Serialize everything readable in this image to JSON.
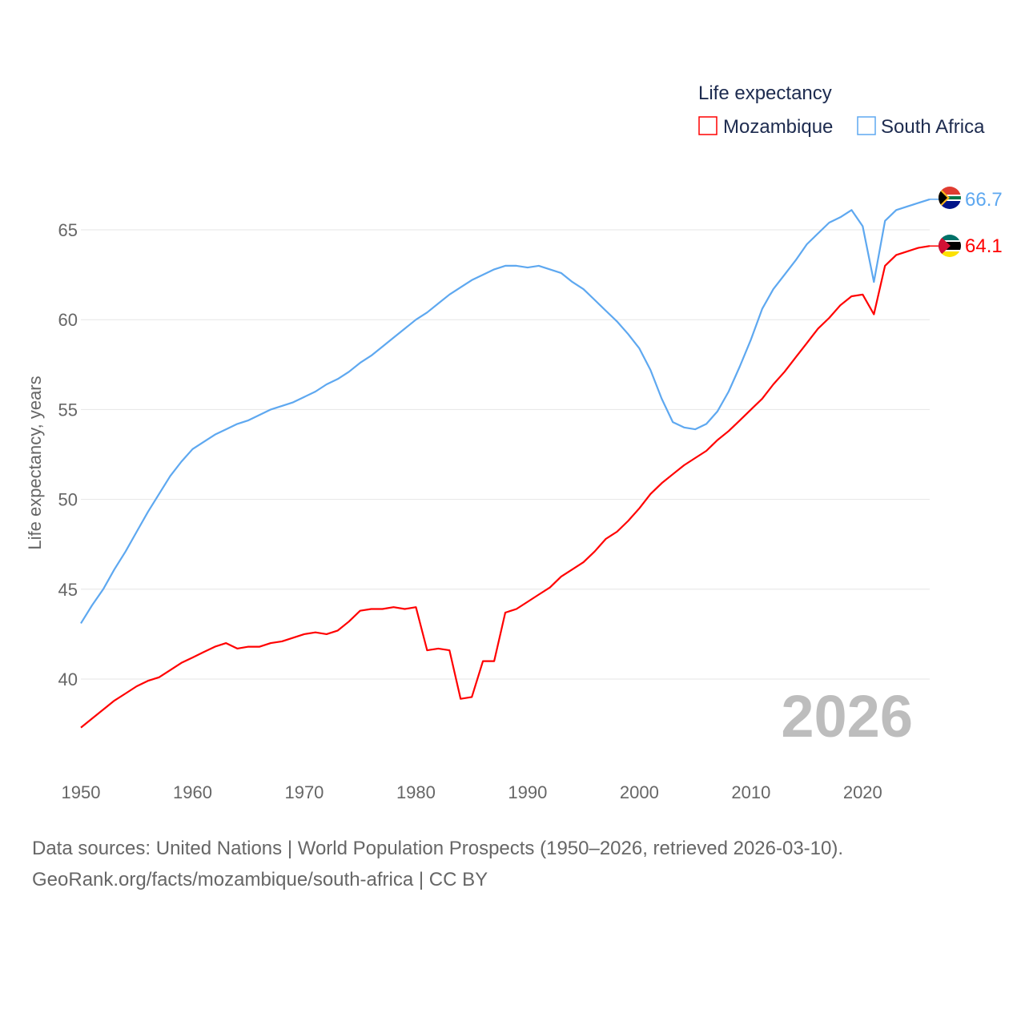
{
  "chart_data": {
    "type": "line",
    "legend_title": "Life expectancy",
    "legend_position": "top-right",
    "ylabel": "Life expectancy, years",
    "xlabel": "",
    "ylim": [
      35,
      68
    ],
    "xlim": [
      1950,
      2026
    ],
    "y_ticks": [
      40,
      45,
      50,
      55,
      60,
      65
    ],
    "x_ticks": [
      1950,
      1960,
      1970,
      1980,
      1990,
      2000,
      2010,
      2020
    ],
    "grid": true,
    "year_label": "2026",
    "x": [
      1950,
      1951,
      1952,
      1953,
      1954,
      1955,
      1956,
      1957,
      1958,
      1959,
      1960,
      1961,
      1962,
      1963,
      1964,
      1965,
      1966,
      1967,
      1968,
      1969,
      1970,
      1971,
      1972,
      1973,
      1974,
      1975,
      1976,
      1977,
      1978,
      1979,
      1980,
      1981,
      1982,
      1983,
      1984,
      1985,
      1986,
      1987,
      1988,
      1989,
      1990,
      1991,
      1992,
      1993,
      1994,
      1995,
      1996,
      1997,
      1998,
      1999,
      2000,
      2001,
      2002,
      2003,
      2004,
      2005,
      2006,
      2007,
      2008,
      2009,
      2010,
      2011,
      2012,
      2013,
      2014,
      2015,
      2016,
      2017,
      2018,
      2019,
      2020,
      2021,
      2022,
      2023,
      2024,
      2025,
      2026
    ],
    "series": [
      {
        "name": "Mozambique",
        "color": "#ff0000",
        "end_label": "64.1",
        "values": [
          37.3,
          37.8,
          38.3,
          38.8,
          39.2,
          39.6,
          39.9,
          40.1,
          40.5,
          40.9,
          41.2,
          41.5,
          41.8,
          42.0,
          41.7,
          41.8,
          41.8,
          42.0,
          42.1,
          42.3,
          42.5,
          42.6,
          42.5,
          42.7,
          43.2,
          43.8,
          43.9,
          43.9,
          44.0,
          43.9,
          44.0,
          41.6,
          41.7,
          41.6,
          38.9,
          39.0,
          41.0,
          41.0,
          43.7,
          43.9,
          44.3,
          44.7,
          45.1,
          45.7,
          46.1,
          46.5,
          47.1,
          47.8,
          48.2,
          48.8,
          49.5,
          50.3,
          50.9,
          51.4,
          51.9,
          52.3,
          52.7,
          53.3,
          53.8,
          54.4,
          55.0,
          55.6,
          56.4,
          57.1,
          57.9,
          58.7,
          59.5,
          60.1,
          60.8,
          61.3,
          61.4,
          60.3,
          63.0,
          63.6,
          63.8,
          64.0,
          64.1
        ]
      },
      {
        "name": "South Africa",
        "color": "#5ea8f0",
        "end_label": "66.7",
        "values": [
          43.1,
          44.1,
          45.0,
          46.1,
          47.1,
          48.2,
          49.3,
          50.3,
          51.3,
          52.1,
          52.8,
          53.2,
          53.6,
          53.9,
          54.2,
          54.4,
          54.7,
          55.0,
          55.2,
          55.4,
          55.7,
          56.0,
          56.4,
          56.7,
          57.1,
          57.6,
          58.0,
          58.5,
          59.0,
          59.5,
          60.0,
          60.4,
          60.9,
          61.4,
          61.8,
          62.2,
          62.5,
          62.8,
          63.0,
          63.0,
          62.9,
          63.0,
          62.8,
          62.6,
          62.1,
          61.7,
          61.1,
          60.5,
          59.9,
          59.2,
          58.4,
          57.2,
          55.6,
          54.3,
          54.0,
          53.9,
          54.2,
          54.9,
          56.0,
          57.4,
          58.9,
          60.6,
          61.7,
          62.5,
          63.3,
          64.2,
          64.8,
          65.4,
          65.7,
          66.1,
          65.2,
          62.1,
          65.5,
          66.1,
          66.3,
          66.5,
          66.7
        ]
      }
    ]
  },
  "footer": {
    "line1": "Data sources: United Nations | World Population Prospects (1950–2026, retrieved 2026-03-10).",
    "line2": "GeoRank.org/facts/mozambique/south-africa | CC BY"
  }
}
